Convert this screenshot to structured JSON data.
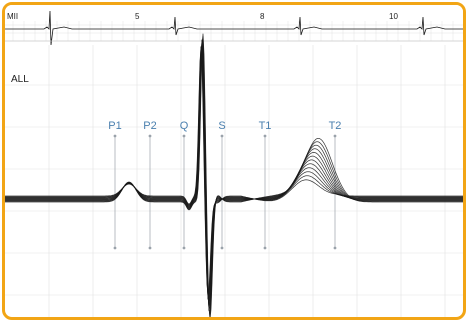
{
  "top_strip": {
    "lead_label": "MII",
    "beat_numbers": [
      "5",
      "8",
      "10"
    ]
  },
  "main_view": {
    "lead_label": "ALL",
    "markers": [
      {
        "id": "p1",
        "label": "P1"
      },
      {
        "id": "p2",
        "label": "P2"
      },
      {
        "id": "q",
        "label": "Q"
      },
      {
        "id": "s",
        "label": "S"
      },
      {
        "id": "t1",
        "label": "T1"
      },
      {
        "id": "t2",
        "label": "T2"
      }
    ]
  },
  "colors": {
    "frame": "#f2a515",
    "grid": "#e1e1e1",
    "trace": "#1a1a1a",
    "marker": "#4a7fae",
    "marker_line": "#9aa2aa"
  },
  "overlay": {
    "beat_count": 12
  }
}
